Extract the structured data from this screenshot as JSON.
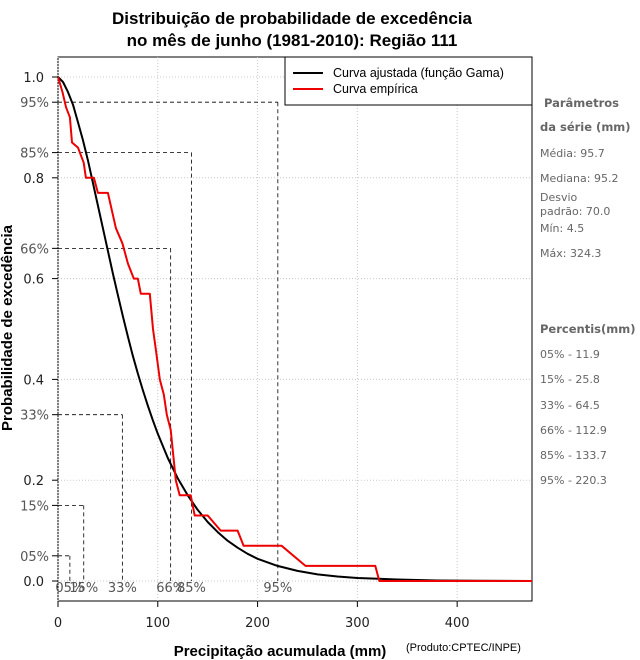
{
  "chart_data": {
    "type": "line",
    "title": [
      "Distribuição de probabilidade de excedência",
      "no mês de junho (1981-2010): Região 111"
    ],
    "xlabel": "Precipitação acumulada (mm)",
    "ylabel": "Probabilidade de excedência",
    "credit": "(Produto:CPTEC/INPE)",
    "xlim": [
      0,
      475
    ],
    "ylim": [
      0,
      1
    ],
    "xticks": [
      0,
      100,
      200,
      300,
      400
    ],
    "yticks": [
      {
        "value": 0.0,
        "label": "0.0"
      },
      {
        "value": 0.2,
        "label": "0.2"
      },
      {
        "value": 0.4,
        "label": "0.4"
      },
      {
        "value": 0.6,
        "label": "0.6"
      },
      {
        "value": 0.8,
        "label": "0.8"
      },
      {
        "value": 1.0,
        "label": "1.0"
      }
    ],
    "percent_ticks": [
      {
        "value": 0.05,
        "label": "05%"
      },
      {
        "value": 0.15,
        "label": "15%"
      },
      {
        "value": 0.33,
        "label": "33%"
      },
      {
        "value": 0.66,
        "label": "66%"
      },
      {
        "value": 0.85,
        "label": "85%"
      },
      {
        "value": 0.95,
        "label": "95%"
      }
    ],
    "grid": true,
    "legend": {
      "position": "top-right",
      "entries": [
        {
          "label": "Curva ajustada (função Gama)",
          "color": "#000000"
        },
        {
          "label": "Curva empírica",
          "color": "#ee0000"
        }
      ]
    },
    "series": [
      {
        "name": "Curva ajustada (função Gama)",
        "color": "#000000",
        "points": [
          [
            0,
            1.0
          ],
          [
            5,
            0.99
          ],
          [
            10,
            0.97
          ],
          [
            15,
            0.945
          ],
          [
            20,
            0.91
          ],
          [
            25,
            0.875
          ],
          [
            30,
            0.835
          ],
          [
            35,
            0.79
          ],
          [
            40,
            0.745
          ],
          [
            45,
            0.7
          ],
          [
            50,
            0.655
          ],
          [
            55,
            0.61
          ],
          [
            60,
            0.567
          ],
          [
            65,
            0.525
          ],
          [
            70,
            0.485
          ],
          [
            75,
            0.447
          ],
          [
            80,
            0.412
          ],
          [
            85,
            0.379
          ],
          [
            90,
            0.348
          ],
          [
            95,
            0.319
          ],
          [
            100,
            0.292
          ],
          [
            110,
            0.244
          ],
          [
            120,
            0.204
          ],
          [
            130,
            0.17
          ],
          [
            140,
            0.141
          ],
          [
            150,
            0.117
          ],
          [
            160,
            0.097
          ],
          [
            170,
            0.08
          ],
          [
            180,
            0.066
          ],
          [
            190,
            0.054
          ],
          [
            200,
            0.044
          ],
          [
            220,
            0.03
          ],
          [
            240,
            0.02
          ],
          [
            260,
            0.013
          ],
          [
            280,
            0.009
          ],
          [
            300,
            0.006
          ],
          [
            340,
            0.003
          ],
          [
            380,
            0.001
          ],
          [
            420,
            0.0005
          ],
          [
            475,
            0.0
          ]
        ]
      },
      {
        "name": "Curva empírica",
        "color": "#ee0000",
        "points": [
          [
            0,
            1.0
          ],
          [
            4.5,
            0.97
          ],
          [
            8,
            0.94
          ],
          [
            11.9,
            0.92
          ],
          [
            14,
            0.87
          ],
          [
            20,
            0.86
          ],
          [
            25.8,
            0.83
          ],
          [
            28,
            0.8
          ],
          [
            36,
            0.8
          ],
          [
            40,
            0.77
          ],
          [
            50,
            0.77
          ],
          [
            58,
            0.7
          ],
          [
            64.5,
            0.67
          ],
          [
            70,
            0.63
          ],
          [
            76,
            0.6
          ],
          [
            80,
            0.6
          ],
          [
            83,
            0.57
          ],
          [
            92,
            0.57
          ],
          [
            95.2,
            0.5
          ],
          [
            98,
            0.46
          ],
          [
            102,
            0.4
          ],
          [
            106,
            0.37
          ],
          [
            109,
            0.33
          ],
          [
            112.9,
            0.3
          ],
          [
            118,
            0.2
          ],
          [
            122,
            0.17
          ],
          [
            133,
            0.17
          ],
          [
            137,
            0.13
          ],
          [
            150,
            0.13
          ],
          [
            163,
            0.1
          ],
          [
            180,
            0.1
          ],
          [
            186,
            0.07
          ],
          [
            224,
            0.07
          ],
          [
            248,
            0.03
          ],
          [
            250,
            0.03
          ],
          [
            258,
            0.03
          ],
          [
            318,
            0.03
          ],
          [
            322,
            0.0
          ],
          [
            330,
            0.0
          ],
          [
            475,
            0.0
          ]
        ]
      }
    ],
    "percentile_guides": [
      {
        "label": "05%",
        "x": 11.9,
        "y": 0.05
      },
      {
        "label": "15%",
        "x": 25.8,
        "y": 0.15
      },
      {
        "label": "33%",
        "x": 64.5,
        "y": 0.33
      },
      {
        "label": "66%",
        "x": 112.9,
        "y": 0.66
      },
      {
        "label": "85%",
        "x": 133.7,
        "y": 0.85
      },
      {
        "label": "95%",
        "x": 220.3,
        "y": 0.95
      }
    ]
  },
  "sidebar": {
    "params_title": [
      "Parâmetros",
      "da série (mm)"
    ],
    "params": [
      "Média: 95.7",
      "Mediana: 95.2",
      "Desvio",
      "padrão: 70.0",
      "Mín: 4.5",
      "Máx: 324.3"
    ],
    "percentis_title": "Percentis(mm)",
    "percentis": [
      "05% - 11.9",
      "15% - 25.8",
      "33% - 64.5",
      "66% - 112.9",
      "85% - 133.7",
      "95% - 220.3"
    ]
  }
}
